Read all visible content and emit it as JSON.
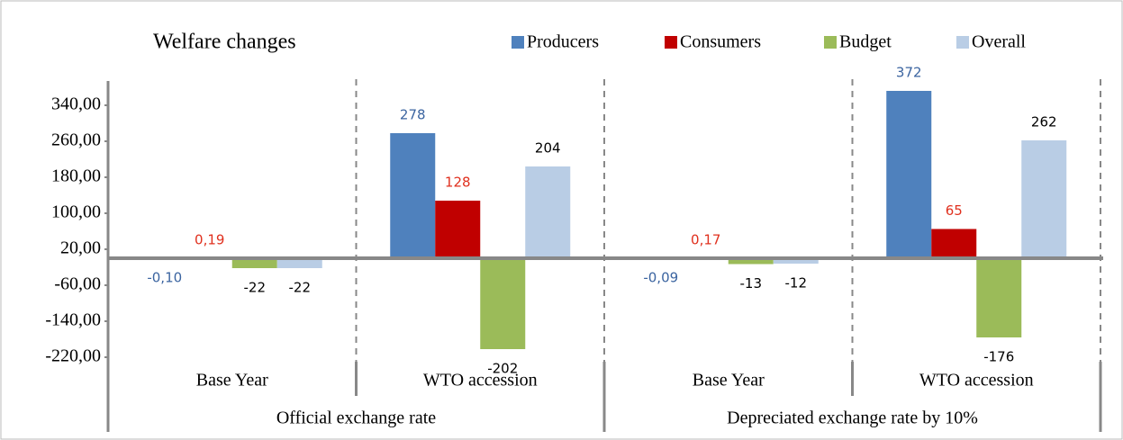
{
  "chart_data": {
    "type": "bar",
    "title": "Welfare changes",
    "categories": [
      "Base Year",
      "WTO accession",
      "Base Year",
      "WTO accession"
    ],
    "groups": [
      "Official exchange rate",
      "Depreciated exchange rate by 10%"
    ],
    "series": [
      {
        "name": "Producers",
        "color": "#4f81bd",
        "label_color": "#3b64a0",
        "values": [
          -0.1,
          278,
          -0.09,
          372
        ],
        "value_labels": [
          "-0,10",
          "278",
          "-0,09",
          "372"
        ]
      },
      {
        "name": "Consumers",
        "color": "#c00000",
        "label_color": "#e0301e",
        "values": [
          0.19,
          128,
          0.17,
          65
        ],
        "value_labels": [
          "0,19",
          "128",
          "0,17",
          "65"
        ]
      },
      {
        "name": "Budget",
        "color": "#9bbb59",
        "label_color": "#000000",
        "values": [
          -22,
          -202,
          -13,
          -176
        ],
        "value_labels": [
          "-22",
          "-202",
          "-13",
          "-176"
        ]
      },
      {
        "name": "Overall",
        "color": "#b9cde5",
        "label_color": "#000000",
        "values": [
          -22,
          204,
          -12,
          262
        ],
        "value_labels": [
          "-22",
          "204",
          "-12",
          "262"
        ]
      }
    ],
    "ylim": [
      -240,
      400
    ],
    "yticks": [
      {
        "value": 340,
        "label": "340,00"
      },
      {
        "value": 260,
        "label": "260,00"
      },
      {
        "value": 180,
        "label": "180,00"
      },
      {
        "value": 100,
        "label": "100,00"
      },
      {
        "value": 20,
        "label": "20,00"
      },
      {
        "value": -60,
        "label": "-60,00"
      },
      {
        "value": -140,
        "label": "-140,00"
      },
      {
        "value": -220,
        "label": "-220,00"
      }
    ]
  }
}
